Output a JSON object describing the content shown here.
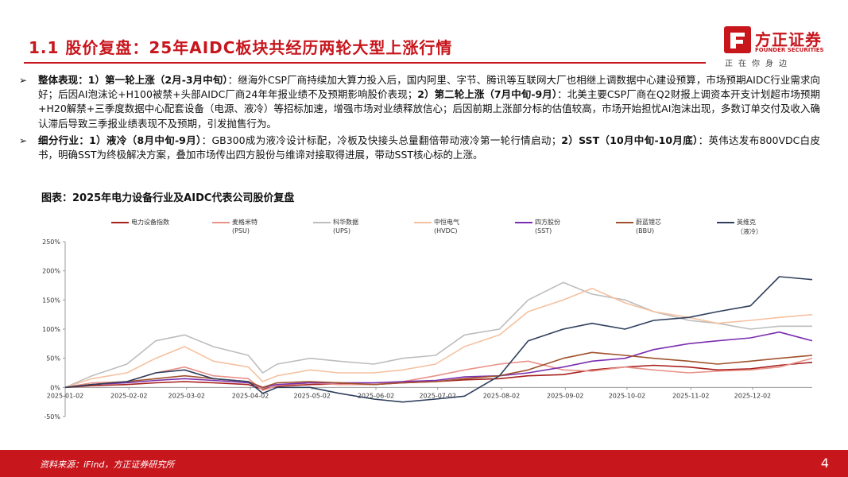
{
  "slide": {
    "title": "1.1 股价复盘：25年AIDC板块共经历两轮大型上涨行情",
    "logo": {
      "name": "方正证券",
      "english": "FOUNDER SECURITIES",
      "slogan": "正在你身边"
    },
    "bullets": [
      {
        "parts": [
          {
            "text": "整体表现：1）第一轮上涨（2月-3月中旬）",
            "bold": true
          },
          {
            "text": "：继海外CSP厂商持续加大算力投入后，国内阿里、字节、腾讯等互联网大厂也相继上调数据中心建设预算，市场预期AIDC行业需求向好；后因AI泡沫论+H100被禁+头部AIDC厂商24年年报业绩不及预期影响股价表现；",
            "bold": false
          },
          {
            "text": "2）第二轮上涨（7月中旬-9月）",
            "bold": true
          },
          {
            "text": "：北美主要CSP厂商在Q2财报上调资本开支计划超市场预期+H20解禁+三季度数据中心配套设备（电源、液冷）等招标加速，增强市场对业绩释放信心；后因前期上涨部分标的估值较高，市场开始担忧AI泡沫出现，多数订单交付及收入确认滞后导致三季报业绩表现不及预期，引发抛售行为。",
            "bold": false
          }
        ]
      },
      {
        "parts": [
          {
            "text": "细分行业：1）液冷（8月中旬-9月）",
            "bold": true
          },
          {
            "text": "：GB300成为液冷设计标配，冷板及快接头总量翻倍带动液冷第一轮行情启动；",
            "bold": false
          },
          {
            "text": "2）SST（10月中旬-10月底）",
            "bold": true
          },
          {
            "text": "：英伟达发布800VDC白皮书，明确SST为终极解决方案，叠加市场传出四方股份与维谛对接取得进展，带动SST核心标的上涨。",
            "bold": false
          }
        ]
      }
    ],
    "figure_title": "图表：2025年电力设备行业及AIDC代表公司股价复盘",
    "source": "资料来源：iFind，方正证券研究所",
    "page_number": "4",
    "colors": {
      "brand_red": "#c8161d"
    }
  },
  "chart_data": {
    "type": "line",
    "title": "图表：2025年电力设备行业及AIDC代表公司股价复盘",
    "ylim": [
      -50,
      250
    ],
    "yticks": [
      "250%",
      "200%",
      "150%",
      "100%",
      "50%",
      "0%",
      "-50%"
    ],
    "ytick_values": [
      250,
      200,
      150,
      100,
      50,
      0,
      -50
    ],
    "xticks": [
      "2025-01-02",
      "2025-02-02",
      "2025-03-02",
      "2025-04-02",
      "2025-05-02",
      "2025-06-02",
      "2025-07-02",
      "2025-08-02",
      "2025-09-02",
      "2025-10-02",
      "2025-11-02",
      "2025-12-02"
    ],
    "x": [
      "2025-01-02",
      "2025-01-15",
      "2025-02-01",
      "2025-02-15",
      "2025-03-01",
      "2025-03-15",
      "2025-04-01",
      "2025-04-08",
      "2025-04-15",
      "2025-05-01",
      "2025-05-15",
      "2025-06-01",
      "2025-06-15",
      "2025-07-01",
      "2025-07-15",
      "2025-08-01",
      "2025-08-15",
      "2025-09-01",
      "2025-09-15",
      "2025-10-01",
      "2025-10-15",
      "2025-11-01",
      "2025-11-15",
      "2025-12-01",
      "2025-12-15",
      "2025-12-31"
    ],
    "grid": false,
    "legend_position": "top",
    "series": [
      {
        "name": "电力设备指数",
        "sub": "",
        "color": "#a6201c",
        "values": [
          0,
          3,
          5,
          8,
          10,
          8,
          5,
          -3,
          2,
          5,
          6,
          5,
          8,
          10,
          13,
          15,
          20,
          22,
          30,
          35,
          38,
          35,
          30,
          32,
          38,
          43
        ]
      },
      {
        "name": "麦格米特",
        "sub": "(PSU)",
        "color": "#e8938a",
        "values": [
          0,
          8,
          10,
          25,
          35,
          20,
          15,
          -5,
          3,
          8,
          5,
          5,
          10,
          20,
          30,
          40,
          45,
          30,
          28,
          35,
          30,
          25,
          28,
          30,
          35,
          50
        ]
      },
      {
        "name": "科华数据",
        "sub": "(UPS)",
        "color": "#bdbdbd",
        "values": [
          0,
          20,
          40,
          80,
          90,
          70,
          55,
          25,
          40,
          50,
          45,
          40,
          50,
          55,
          90,
          100,
          150,
          180,
          160,
          150,
          130,
          115,
          110,
          100,
          105,
          105
        ]
      },
      {
        "name": "中恒电气",
        "sub": "(HVDC)",
        "color": "#f5c1a0",
        "values": [
          0,
          15,
          25,
          50,
          70,
          45,
          35,
          10,
          20,
          30,
          25,
          25,
          30,
          40,
          70,
          90,
          130,
          150,
          170,
          145,
          130,
          120,
          110,
          115,
          120,
          125
        ]
      },
      {
        "name": "四方股份",
        "sub": "(SST)",
        "color": "#7b2fb0",
        "values": [
          0,
          5,
          8,
          12,
          15,
          12,
          8,
          0,
          5,
          8,
          8,
          8,
          10,
          12,
          18,
          20,
          25,
          35,
          45,
          50,
          65,
          75,
          80,
          85,
          95,
          80
        ]
      },
      {
        "name": "蔚蓝锂芯",
        "sub": "(BBU)",
        "color": "#a0522d",
        "values": [
          0,
          5,
          10,
          15,
          20,
          15,
          10,
          0,
          8,
          10,
          8,
          5,
          8,
          10,
          15,
          20,
          30,
          50,
          60,
          55,
          50,
          45,
          40,
          45,
          50,
          55
        ]
      },
      {
        "name": "英维克",
        "sub": "（液冷）",
        "color": "#2e3f5c",
        "values": [
          0,
          5,
          10,
          25,
          30,
          15,
          10,
          -10,
          0,
          0,
          -10,
          -20,
          -25,
          -20,
          -15,
          20,
          80,
          100,
          110,
          100,
          115,
          120,
          130,
          140,
          190,
          185
        ]
      }
    ]
  }
}
